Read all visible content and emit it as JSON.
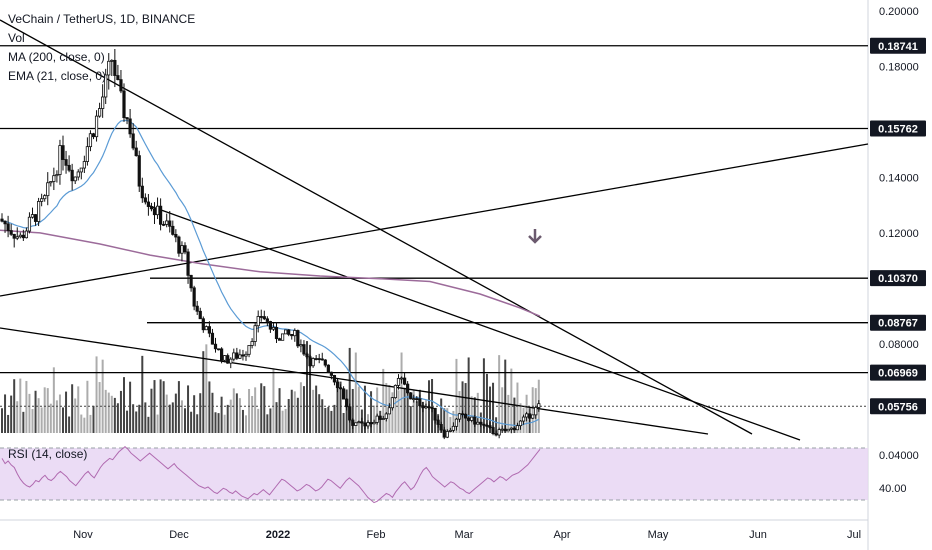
{
  "header": {
    "symbol_line": "VeChain / TetherUS, 1D, BINANCE",
    "indicators": [
      "Vol",
      "MA (200, close, 0)",
      "EMA (21, close, 0)"
    ],
    "rsi_label": "RSI (14, close)"
  },
  "colors": {
    "up": "#26a69a",
    "down": "#111111",
    "ema": "#5b9bd5",
    "ma": "#9c6b9a",
    "rsi_line": "#b06ab0",
    "rsi_band": "#e8d6f3",
    "arrow": "#6b5a6e"
  },
  "chart_data": {
    "type": "candlestick",
    "title": "VeChain / TetherUS, 1D, BINANCE",
    "price_axis": {
      "ticks": [
        "0.20000",
        "0.18000",
        "0.14000",
        "0.12000",
        "0.08000",
        "0.04000"
      ],
      "range": [
        0.0166,
        0.2039
      ]
    },
    "time_axis": {
      "labels": [
        "Nov",
        "Dec",
        "2022",
        "Feb",
        "Mar",
        "Apr",
        "May",
        "Jun",
        "Jul"
      ]
    },
    "price_levels": [
      "0.18741",
      "0.15762",
      "0.10370",
      "0.08767",
      "0.06969"
    ],
    "last_price": "0.05756",
    "rsi": {
      "tick": "40.00",
      "band": [
        30,
        70
      ],
      "values": [
        62,
        58,
        60,
        57,
        55,
        50,
        46,
        43,
        41,
        40,
        42,
        45,
        44,
        47,
        49,
        46,
        45,
        47,
        50,
        52,
        50,
        48,
        45,
        43,
        41,
        44,
        47,
        50,
        52,
        49,
        47,
        51,
        55,
        58,
        60,
        62,
        61,
        64,
        67,
        69,
        71,
        69,
        66,
        64,
        62,
        60,
        62,
        64,
        66,
        64,
        62,
        60,
        58,
        56,
        54,
        56,
        58,
        55,
        53,
        51,
        49,
        47,
        45,
        43,
        41,
        40,
        39,
        40,
        38,
        36,
        35,
        37,
        39,
        38,
        36,
        35,
        37,
        35,
        33,
        32,
        31,
        33,
        35,
        34,
        36,
        38,
        36,
        34,
        37,
        40,
        43,
        46,
        45,
        43,
        41,
        39,
        37,
        38,
        40,
        42,
        41,
        39,
        37,
        38,
        40,
        43,
        46,
        45,
        43,
        41,
        39,
        42,
        45,
        47,
        45,
        43,
        41,
        38,
        35,
        32,
        30,
        28,
        29,
        31,
        33,
        35,
        34,
        32,
        36,
        39,
        42,
        44,
        41,
        38,
        40,
        44,
        49,
        53,
        55,
        52,
        48,
        46,
        44,
        42,
        40,
        42,
        44,
        43,
        41,
        39,
        38,
        36,
        35,
        37,
        39,
        41,
        43,
        45,
        47,
        46,
        44,
        46,
        48,
        47,
        45,
        47,
        49,
        50,
        51,
        53,
        55,
        57,
        60,
        63,
        66,
        69
      ]
    }
  }
}
